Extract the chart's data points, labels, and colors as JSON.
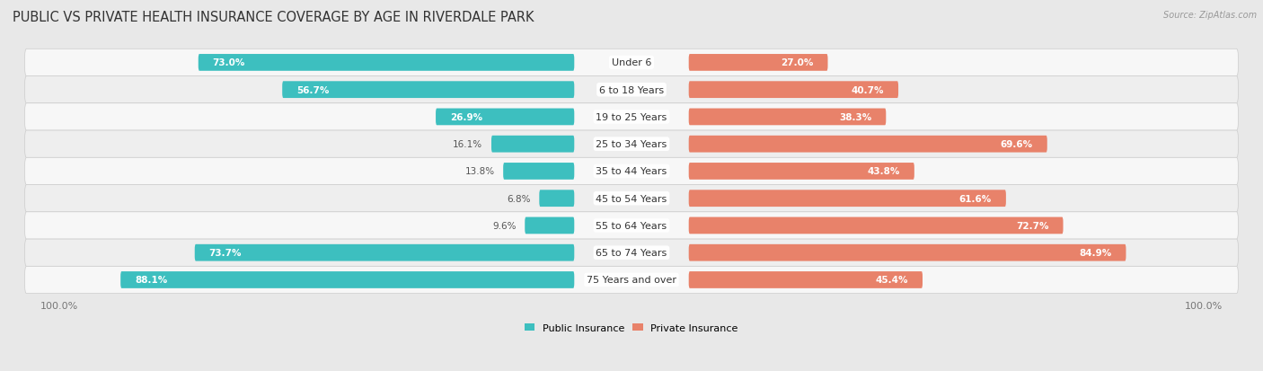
{
  "title": "PUBLIC VS PRIVATE HEALTH INSURANCE COVERAGE BY AGE IN RIVERDALE PARK",
  "source": "Source: ZipAtlas.com",
  "categories": [
    "Under 6",
    "6 to 18 Years",
    "19 to 25 Years",
    "25 to 34 Years",
    "35 to 44 Years",
    "45 to 54 Years",
    "55 to 64 Years",
    "65 to 74 Years",
    "75 Years and over"
  ],
  "public_values": [
    73.0,
    56.7,
    26.9,
    16.1,
    13.8,
    6.8,
    9.6,
    73.7,
    88.1
  ],
  "private_values": [
    27.0,
    40.7,
    38.3,
    69.6,
    43.8,
    61.6,
    72.7,
    84.9,
    45.4
  ],
  "public_color": "#3dbfbf",
  "private_color": "#e8826a",
  "bg_color": "#e8e8e8",
  "row_bg_light": "#f7f7f7",
  "row_bg_dark": "#eeeeee",
  "title_fontsize": 10.5,
  "label_fontsize": 8,
  "bar_label_fontsize": 7.5,
  "axis_label_fontsize": 8,
  "legend_fontsize": 8,
  "max_val": 100.0
}
